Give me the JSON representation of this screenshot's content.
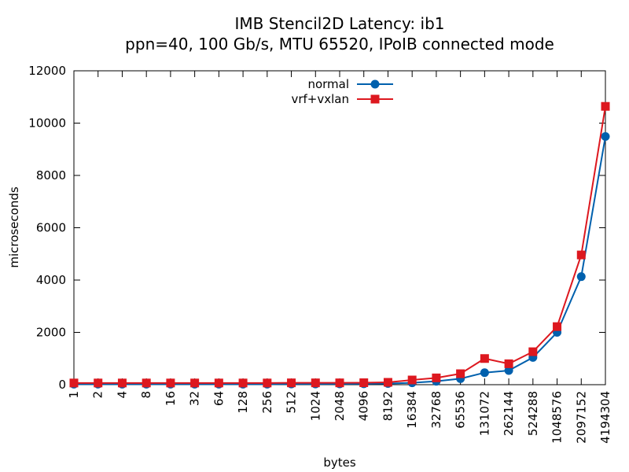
{
  "chart_data": {
    "type": "line",
    "title": "IMB Stencil2D Latency: ib1",
    "subtitle": "ppn=40, 100 Gb/s, MTU 65520, IPoIB connected mode",
    "xlabel": "bytes",
    "ylabel": "microseconds",
    "ylim": [
      0,
      12000
    ],
    "yticks": [
      "0",
      "2000",
      "4000",
      "6000",
      "8000",
      "10000",
      "12000"
    ],
    "categories": [
      "1",
      "2",
      "4",
      "8",
      "16",
      "32",
      "64",
      "128",
      "256",
      "512",
      "1024",
      "2048",
      "4096",
      "8192",
      "16384",
      "32768",
      "65536",
      "131072",
      "262144",
      "524288",
      "1048576",
      "2097152",
      "4194304"
    ],
    "grid": false,
    "legend_position": "top-center",
    "series": [
      {
        "name": "normal",
        "color": "#0060ad",
        "marker": "circle",
        "values": [
          20,
          20,
          20,
          20,
          20,
          20,
          20,
          20,
          20,
          25,
          25,
          30,
          35,
          45,
          70,
          130,
          230,
          460,
          540,
          1040,
          2000,
          4130,
          9490
        ]
      },
      {
        "name": "vrf+vxlan",
        "color": "#dd181f",
        "marker": "square",
        "values": [
          65,
          65,
          65,
          65,
          65,
          65,
          65,
          65,
          65,
          70,
          70,
          70,
          75,
          90,
          180,
          260,
          420,
          1000,
          800,
          1260,
          2220,
          4960,
          10640
        ]
      }
    ]
  }
}
